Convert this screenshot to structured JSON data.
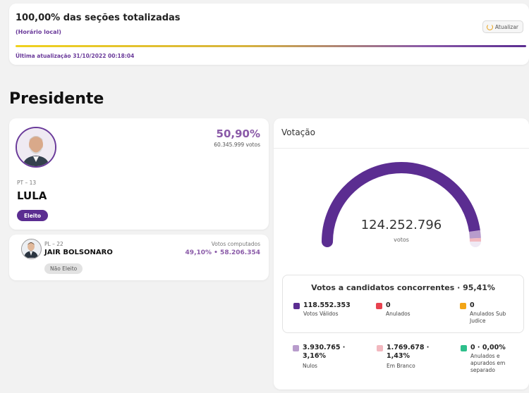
{
  "status": {
    "title": "100,00% das seções totalizadas",
    "subtitle": "(Horário local)",
    "refresh_label": "Atualizar",
    "progress": 1.0,
    "last_update": "Última atualização 31/10/2022 00:18:04"
  },
  "section_title": "Presidente",
  "candidates": {
    "lula": {
      "party_number": "PT – 13",
      "name": "LULA",
      "percent": "50,90%",
      "votes": "60.345.999 votos",
      "status": "Eleito"
    },
    "bolsonaro": {
      "party_number": "PL – 22",
      "name": "JAIR BOLSONARO",
      "computed_label": "Votos computados",
      "result": "49,10% • 58.206.354",
      "status": "Não Eleito"
    }
  },
  "votacao": {
    "title": "Votação",
    "total": "124.252.796",
    "total_unit": "votos",
    "gauge": {
      "valid_share": 0.9541,
      "nulos_share": 0.0316,
      "branco_share": 0.0143
    },
    "concorrentes_title": "Votos a candidatos concorrentes · 95,41%",
    "legend_box": [
      {
        "value": "118.552.353",
        "label": "Votos Válidos",
        "color": "#5b2d91"
      },
      {
        "value": "0",
        "label": "Anulados",
        "color": "#e8424f"
      },
      {
        "value": "0",
        "label": "Anulados Sub Judice",
        "color": "#f2a516"
      }
    ],
    "legend_bottom": [
      {
        "value": "3.930.765 · 3,16%",
        "label": "Nulos",
        "color": "#b89ccc"
      },
      {
        "value": "1.769.678 · 1,43%",
        "label": "Em Branco",
        "color": "#f2b8bf"
      },
      {
        "value": "0 · 0,00%",
        "label": "Anulados e apurados em separado",
        "color": "#2ebf8b"
      }
    ]
  },
  "colors": {
    "accent": "#5b2d91",
    "accent_light": "#8a5aa8",
    "nulos": "#b89ccc",
    "branco": "#f2b8bf"
  }
}
